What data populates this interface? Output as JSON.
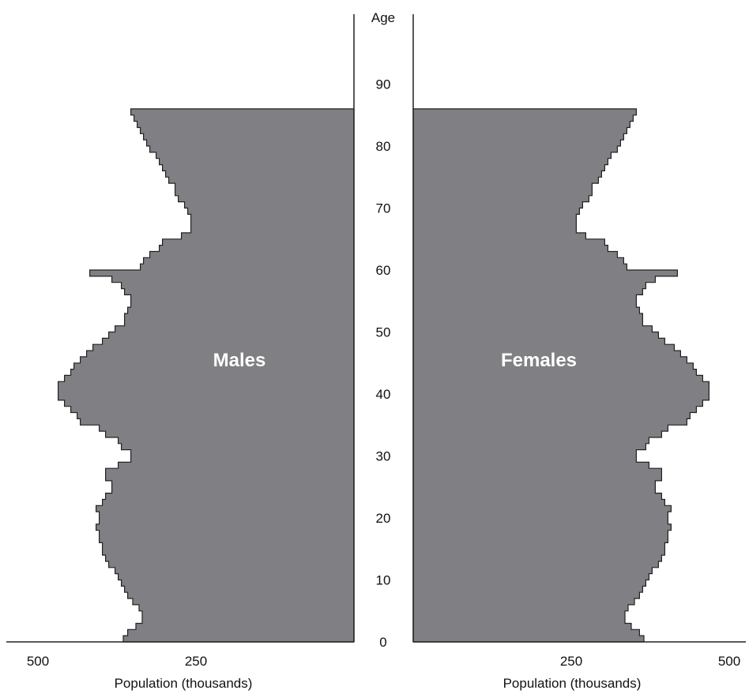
{
  "chart_data": {
    "type": "area",
    "subtype": "population-pyramid",
    "age_axis_title": "Age",
    "age_ticks": [
      0,
      10,
      20,
      30,
      40,
      50,
      60,
      70,
      80,
      90
    ],
    "age_range": [
      0,
      99
    ],
    "x_axis_title": "Population (thousands)",
    "x_ticks": [
      250,
      500
    ],
    "x_range": [
      0,
      500
    ],
    "fill_color": "#808084",
    "outline_color": "#222222",
    "series": [
      {
        "name": "Males",
        "ages": [
          0,
          1,
          2,
          3,
          4,
          5,
          6,
          7,
          8,
          9,
          10,
          11,
          12,
          13,
          14,
          15,
          16,
          17,
          18,
          19,
          20,
          21,
          22,
          23,
          24,
          25,
          26,
          27,
          28,
          29,
          30,
          31,
          32,
          33,
          34,
          35,
          36,
          37,
          38,
          39,
          40,
          41,
          42,
          43,
          44,
          45,
          46,
          47,
          48,
          49,
          50,
          51,
          52,
          53,
          54,
          55,
          56,
          57,
          58,
          59,
          60,
          61,
          62,
          63,
          64,
          65,
          66,
          67,
          68,
          69,
          70,
          71,
          72,
          73,
          74,
          75,
          76,
          77,
          78,
          79,
          80,
          81,
          82,
          83,
          84,
          85
        ],
        "values": [
          365,
          358,
          345,
          335,
          335,
          340,
          350,
          358,
          363,
          368,
          373,
          378,
          388,
          393,
          398,
          398,
          403,
          403,
          408,
          403,
          403,
          408,
          398,
          393,
          383,
          383,
          393,
          393,
          373,
          353,
          353,
          368,
          373,
          393,
          403,
          433,
          438,
          448,
          458,
          468,
          468,
          468,
          458,
          448,
          443,
          433,
          423,
          413,
          398,
          388,
          378,
          363,
          363,
          358,
          353,
          353,
          363,
          368,
          383,
          418,
          338,
          333,
          323,
          308,
          303,
          273,
          258,
          258,
          258,
          263,
          268,
          278,
          283,
          283,
          293,
          298,
          303,
          308,
          313,
          323,
          328,
          333,
          338,
          343,
          348,
          353
        ]
      },
      {
        "name": "Females",
        "ages": [
          0,
          1,
          2,
          3,
          4,
          5,
          6,
          7,
          8,
          9,
          10,
          11,
          12,
          13,
          14,
          15,
          16,
          17,
          18,
          19,
          20,
          21,
          22,
          23,
          24,
          25,
          26,
          27,
          28,
          29,
          30,
          31,
          32,
          33,
          34,
          35,
          36,
          37,
          38,
          39,
          40,
          41,
          42,
          43,
          44,
          45,
          46,
          47,
          48,
          49,
          50,
          51,
          52,
          53,
          54,
          55,
          56,
          57,
          58,
          59,
          60,
          61,
          62,
          63,
          64,
          65,
          66,
          67,
          68,
          69,
          70,
          71,
          72,
          73,
          74,
          75,
          76,
          77,
          78,
          79,
          80,
          81,
          82,
          83,
          84,
          85
        ],
        "values": [
          365,
          358,
          345,
          335,
          335,
          340,
          350,
          358,
          363,
          368,
          373,
          378,
          388,
          393,
          398,
          398,
          403,
          403,
          408,
          403,
          403,
          408,
          398,
          393,
          383,
          383,
          393,
          393,
          373,
          353,
          353,
          368,
          373,
          393,
          403,
          433,
          438,
          448,
          458,
          468,
          468,
          468,
          458,
          448,
          443,
          433,
          423,
          413,
          398,
          388,
          378,
          363,
          363,
          358,
          353,
          353,
          363,
          368,
          383,
          418,
          338,
          333,
          323,
          308,
          303,
          273,
          258,
          258,
          258,
          263,
          268,
          278,
          283,
          283,
          293,
          298,
          303,
          308,
          313,
          323,
          328,
          333,
          338,
          343,
          348,
          353
        ]
      }
    ],
    "annotations": [
      "Males",
      "Females"
    ],
    "grid": false,
    "legend": "none"
  }
}
